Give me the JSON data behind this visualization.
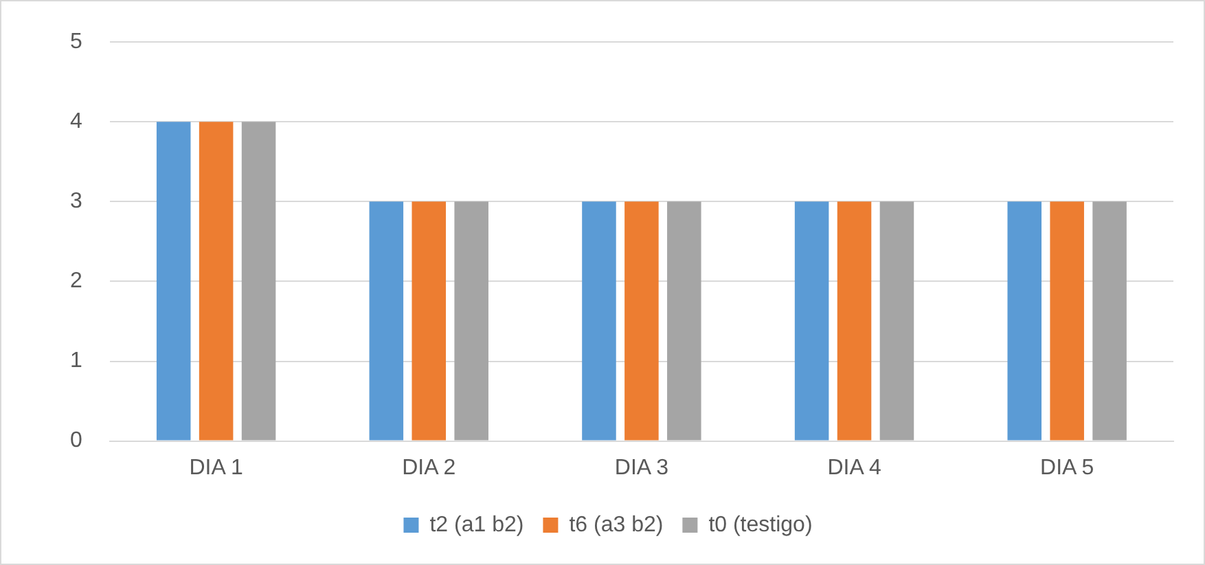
{
  "chart_data": {
    "type": "bar",
    "categories": [
      "DIA 1",
      "DIA 2",
      "DIA 3",
      "DIA 4",
      "DIA 5"
    ],
    "series": [
      {
        "name": "t2 (a1 b2)",
        "color": "#5b9bd5",
        "values": [
          4,
          3,
          3,
          3,
          3
        ]
      },
      {
        "name": "t6 (a3 b2)",
        "color": "#ed7d31",
        "values": [
          4,
          3,
          3,
          3,
          3
        ]
      },
      {
        "name": "t0 (testigo)",
        "color": "#a5a5a5",
        "values": [
          4,
          3,
          3,
          3,
          3
        ]
      }
    ],
    "ylim": [
      0,
      5
    ],
    "yticks": [
      0,
      1,
      2,
      3,
      4,
      5
    ],
    "grid": "y",
    "legend": "bottom"
  }
}
